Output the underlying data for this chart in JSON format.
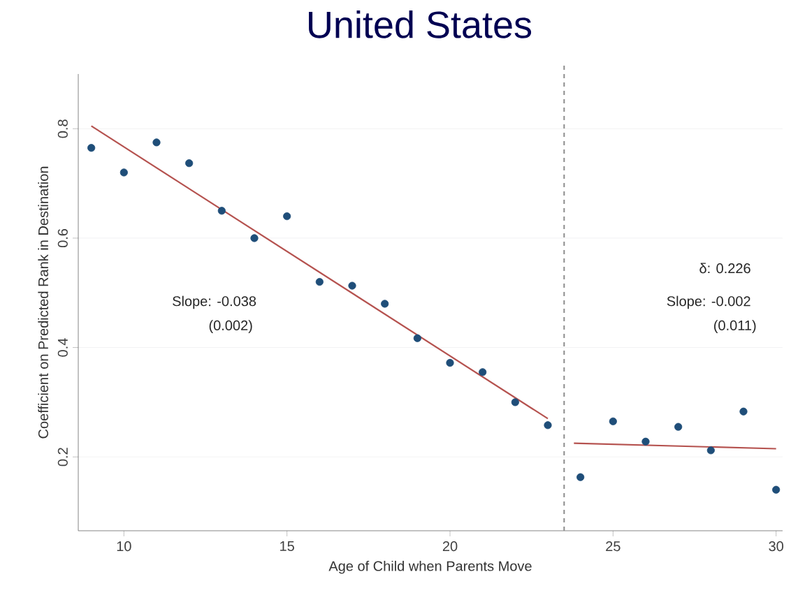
{
  "chart_data": {
    "type": "scatter",
    "title": "United States",
    "xlabel": "Age of Child when Parents Move",
    "ylabel": "Coefficient on Predicted Rank in Destination",
    "x": [
      9,
      10,
      11,
      12,
      13,
      14,
      15,
      16,
      17,
      18,
      19,
      20,
      21,
      22,
      23,
      24,
      25,
      26,
      27,
      28,
      29,
      30
    ],
    "series": [
      {
        "color": "#1f4e79",
        "values": [
          0.765,
          0.72,
          0.775,
          0.737,
          0.65,
          0.6,
          0.64,
          0.52,
          0.513,
          0.48,
          0.417,
          0.372,
          0.355,
          0.3,
          0.258,
          0.163,
          0.265,
          0.228,
          0.255,
          0.212,
          0.283,
          0.14
        ]
      },
      {
        "type": "line",
        "color": "#b5524f",
        "marker": "none",
        "x": [
          9,
          23
        ],
        "values": [
          0.805,
          0.27
        ]
      },
      {
        "type": "line",
        "color": "#b5524f",
        "marker": "none",
        "x": [
          23.8,
          30
        ],
        "values": [
          0.225,
          0.215
        ]
      }
    ],
    "xlim": [
      8.6,
      30.2
    ],
    "ylim": [
      0.065,
      0.9
    ],
    "xticks": [
      10,
      15,
      20,
      25,
      30
    ],
    "yticks": [
      0.2,
      0.4,
      0.6,
      0.8
    ],
    "grid": "y",
    "marker": "circle",
    "ref_lines": [
      {
        "axis": "x",
        "value": 23.5,
        "color": "#8c8c8c",
        "line_style": "dashed"
      }
    ],
    "annotations": [
      "Slope:  -0.038",
      "(0.002)",
      "δ: 0.226",
      "Slope:  -0.002",
      "(0.011)"
    ]
  }
}
